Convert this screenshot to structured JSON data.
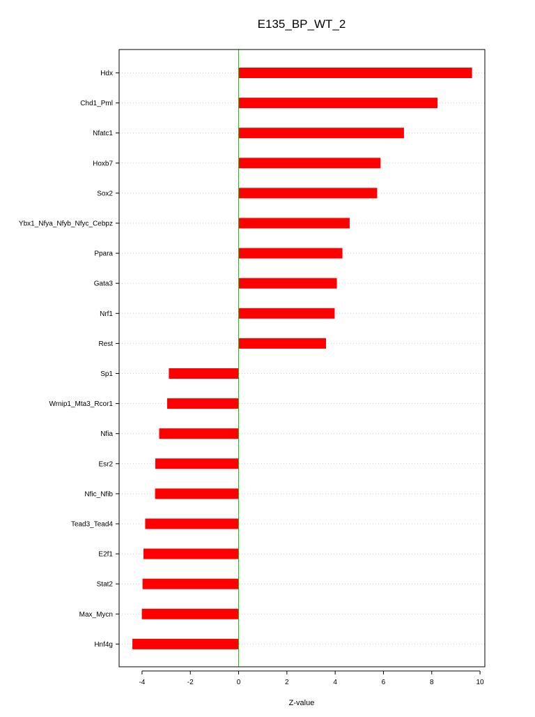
{
  "chart_data": {
    "type": "bar",
    "orientation": "horizontal",
    "title": "E135_BP_WT_2",
    "xlabel": "Z-value",
    "ylabel": "",
    "xlim": [
      -4.95,
      10.2
    ],
    "xticks": [
      -4,
      -2,
      0,
      2,
      4,
      6,
      8,
      10
    ],
    "grid": "horizontal dotted",
    "categories": [
      "Hdx",
      "Chd1_Pml",
      "Nfatc1",
      "Hoxb7",
      "Sox2",
      "Ybx1_Nfya_Nfyb_Nfyc_Cebpz",
      "Ppara",
      "Gata3",
      "Nrf1",
      "Rest",
      "Sp1",
      "Wrnip1_Mta3_Rcor1",
      "Nfia",
      "Esr2",
      "Nfic_Nfib",
      "Tead3_Tead4",
      "E2f1",
      "Stat2",
      "Max_Mycn",
      "Hnf4g"
    ],
    "values": [
      9.67,
      8.24,
      6.85,
      5.88,
      5.74,
      4.6,
      4.3,
      4.07,
      3.98,
      3.62,
      -2.89,
      -2.96,
      -3.29,
      -3.45,
      -3.46,
      -3.87,
      -3.94,
      -3.98,
      -4.01,
      -4.4
    ],
    "colors": {
      "bar": "#ff0000",
      "zero_line": "#00cc00",
      "grid": "#c8c8c8",
      "axis": "#000000"
    }
  }
}
